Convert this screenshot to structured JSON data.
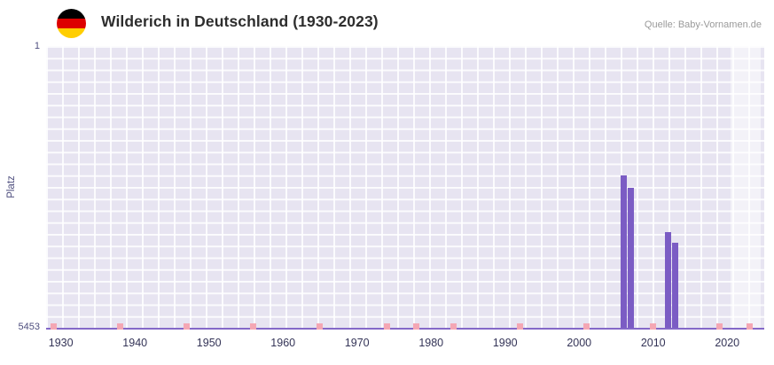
{
  "header": {
    "title": "Wilderich in Deutschland (1930-2023)",
    "source": "Quelle: Baby-Vornamen.de",
    "flag_colors": [
      "#000000",
      "#dd0000",
      "#ffce00"
    ]
  },
  "chart_data": {
    "type": "bar",
    "title": "Wilderich in Deutschland (1930-2023)",
    "xlabel": "",
    "ylabel": "Platz",
    "legend": false,
    "grid": true,
    "plot_bg": "#e7e4f1",
    "bar_color": "#7b5cc4",
    "axis_line_color": "#8468c8",
    "y_axis": {
      "min": 1,
      "max": 5453,
      "inverted": true,
      "ticks": [
        "1",
        "5453"
      ]
    },
    "x_axis": {
      "min": 1928,
      "max": 2025,
      "ticks": [
        1930,
        1940,
        1950,
        1960,
        1970,
        1980,
        1990,
        2000,
        2010,
        2020
      ]
    },
    "bars": [
      {
        "year": 2006,
        "rank": 2500
      },
      {
        "year": 2007,
        "rank": 2750
      },
      {
        "year": 2012,
        "rank": 3600
      },
      {
        "year": 2013,
        "rank": 3800
      }
    ],
    "baseline_markers": {
      "color": "#f4a7b4",
      "years": [
        1929,
        1938,
        1947,
        1956,
        1965,
        1974,
        1978,
        1983,
        1992,
        2001,
        2010,
        2019,
        2023
      ]
    },
    "recent_band": {
      "from": 2020.5,
      "to": 2024.5,
      "overlay": "rgba(255,255,255,0.5)"
    }
  }
}
